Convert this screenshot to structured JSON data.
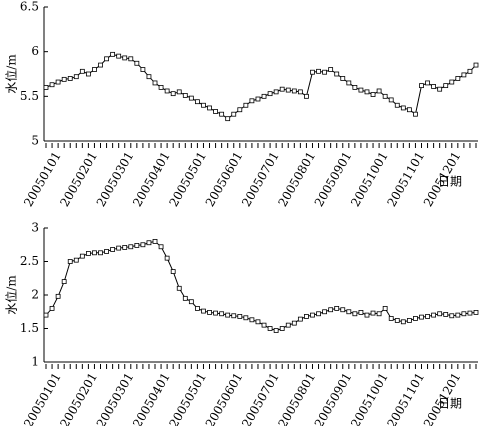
{
  "chart_data": [
    {
      "type": "line",
      "y_label": "水位/m",
      "x_label": "日期",
      "categories": [
        null,
        null,
        "20050101",
        null,
        null,
        null,
        null,
        null,
        "20050201",
        null,
        null,
        null,
        null,
        null,
        "20050301",
        null,
        null,
        null,
        null,
        null,
        "20050401",
        null,
        null,
        null,
        null,
        null,
        "20050501",
        null,
        null,
        null,
        null,
        null,
        "20050601",
        null,
        null,
        null,
        null,
        null,
        "20050701",
        null,
        null,
        null,
        null,
        null,
        "20050801",
        null,
        null,
        null,
        null,
        null,
        "20050901",
        null,
        null,
        null,
        null,
        null,
        "20051001",
        null,
        null,
        null,
        null,
        null,
        "20051101",
        null,
        null,
        null,
        null,
        null,
        "20051201",
        null,
        null,
        null
      ],
      "series": [
        {
          "color": "#000000",
          "values": [
            5.6,
            5.63,
            5.66,
            5.69,
            5.7,
            5.72,
            5.78,
            5.75,
            5.8,
            5.85,
            5.92,
            5.97,
            5.95,
            5.93,
            5.92,
            5.87,
            5.8,
            5.72,
            5.65,
            5.6,
            5.56,
            5.53,
            5.55,
            5.51,
            5.48,
            5.44,
            5.4,
            5.37,
            5.33,
            5.3,
            5.25,
            5.3,
            5.35,
            5.4,
            5.45,
            5.47,
            5.5,
            5.53,
            5.55,
            5.58,
            5.57,
            5.56,
            5.55,
            5.5,
            5.77,
            5.78,
            5.77,
            5.8,
            5.75,
            5.7,
            5.65,
            5.6,
            5.57,
            5.55,
            5.52,
            5.56,
            5.5,
            5.46,
            5.4,
            5.37,
            5.35,
            5.3,
            5.62,
            5.65,
            5.61,
            5.58,
            5.62,
            5.66,
            5.7,
            5.74,
            5.78,
            5.85
          ]
        }
      ],
      "ylim": [
        5,
        6.5
      ],
      "yticks": [
        5,
        5.5,
        6,
        6.5
      ]
    },
    {
      "type": "line",
      "y_label": "水位/m",
      "x_label": "日期",
      "categories": [
        null,
        null,
        "20050101",
        null,
        null,
        null,
        null,
        null,
        "20050201",
        null,
        null,
        null,
        null,
        null,
        "20050301",
        null,
        null,
        null,
        null,
        null,
        "20050401",
        null,
        null,
        null,
        null,
        null,
        "20050501",
        null,
        null,
        null,
        null,
        null,
        "20050601",
        null,
        null,
        null,
        null,
        null,
        "20050701",
        null,
        null,
        null,
        null,
        null,
        "20050801",
        null,
        null,
        null,
        null,
        null,
        "20050901",
        null,
        null,
        null,
        null,
        null,
        "20051001",
        null,
        null,
        null,
        null,
        null,
        "20051101",
        null,
        null,
        null,
        null,
        null,
        "20051201",
        null,
        null,
        null
      ],
      "series": [
        {
          "color": "#000000",
          "values": [
            1.7,
            1.8,
            1.98,
            2.2,
            2.5,
            2.52,
            2.58,
            2.62,
            2.63,
            2.63,
            2.65,
            2.68,
            2.7,
            2.71,
            2.72,
            2.74,
            2.75,
            2.78,
            2.8,
            2.72,
            2.55,
            2.35,
            2.1,
            1.95,
            1.9,
            1.8,
            1.76,
            1.74,
            1.73,
            1.72,
            1.7,
            1.69,
            1.68,
            1.66,
            1.63,
            1.6,
            1.55,
            1.5,
            1.47,
            1.5,
            1.55,
            1.58,
            1.64,
            1.68,
            1.7,
            1.72,
            1.75,
            1.78,
            1.8,
            1.78,
            1.75,
            1.72,
            1.74,
            1.7,
            1.73,
            1.72,
            1.8,
            1.65,
            1.62,
            1.6,
            1.62,
            1.65,
            1.67,
            1.68,
            1.7,
            1.72,
            1.71,
            1.69,
            1.7,
            1.72,
            1.73,
            1.74
          ]
        }
      ],
      "ylim": [
        1,
        3
      ],
      "yticks": [
        1,
        1.5,
        2,
        2.5,
        3
      ]
    }
  ]
}
